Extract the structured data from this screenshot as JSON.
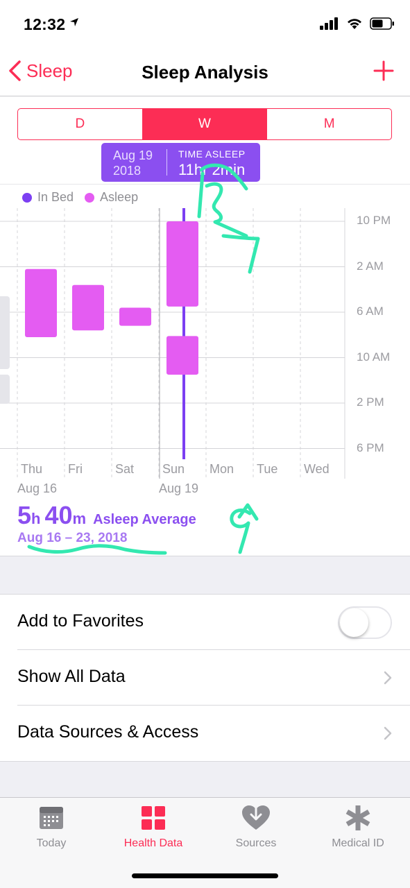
{
  "status_bar": {
    "time": "12:32"
  },
  "nav": {
    "back_label": "Sleep",
    "title": "Sleep Analysis"
  },
  "segments": [
    {
      "label": "D",
      "selected": false
    },
    {
      "label": "W",
      "selected": true
    },
    {
      "label": "M",
      "selected": false
    }
  ],
  "tooltip": {
    "date_line1": "Aug 19",
    "date_line2": "2018",
    "label": "TIME ASLEEP",
    "value": "11hr 2min"
  },
  "legend": [
    {
      "label": "In Bed",
      "color": "#7c3ff2"
    },
    {
      "label": "Asleep",
      "color": "#e45cf2"
    }
  ],
  "chart_data": {
    "type": "range-bar",
    "y_axis_ticks": [
      "10 PM",
      "2 AM",
      "6 AM",
      "10 AM",
      "2 PM",
      "6 PM"
    ],
    "y_range_hours_from_10pm": [
      0,
      20
    ],
    "x_axis_ticks": [
      "Thu",
      "Fri",
      "Sat",
      "Sun",
      "Mon",
      "Tue",
      "Wed"
    ],
    "x_date_labels": [
      {
        "day": "Thu",
        "label": "Aug 16"
      },
      {
        "day": "Sun",
        "label": "Aug 19"
      }
    ],
    "selected_day": "Sun",
    "asleep_segments": [
      {
        "day": "Thu",
        "start": 4.2,
        "end": 10.2
      },
      {
        "day": "Fri",
        "start": 5.6,
        "end": 9.6
      },
      {
        "day": "Sat",
        "start": 7.6,
        "end": 9.2
      },
      {
        "day": "Sun",
        "start": 0.0,
        "end": 7.5
      },
      {
        "day": "Sun",
        "start": 10.1,
        "end": 13.5
      }
    ],
    "in_bed_segments": [
      {
        "day": "Sun",
        "start": -3.5,
        "end": 21.0
      }
    ],
    "colors": {
      "asleep": "#e45cf2",
      "in_bed": "#7c3ff2",
      "grid": "#d4d4d8"
    }
  },
  "summary": {
    "hours": "5",
    "hours_unit": "h",
    "minutes": "40",
    "minutes_unit": "m",
    "label": "Asleep Average",
    "date_range": "Aug 16 – 23, 2018"
  },
  "rows": [
    {
      "label": "Add to Favorites",
      "type": "toggle",
      "value": false
    },
    {
      "label": "Show All Data",
      "type": "link"
    },
    {
      "label": "Data Sources & Access",
      "type": "link"
    }
  ],
  "tabs": [
    {
      "label": "Today",
      "icon": "calendar-icon",
      "active": false
    },
    {
      "label": "Health Data",
      "icon": "grid-icon",
      "active": true
    },
    {
      "label": "Sources",
      "icon": "heart-arrow-icon",
      "active": false
    },
    {
      "label": "Medical ID",
      "icon": "asterisk-icon",
      "active": false
    }
  ],
  "accent_color": "#fc2d55",
  "annotation_color": "#33e8b0"
}
